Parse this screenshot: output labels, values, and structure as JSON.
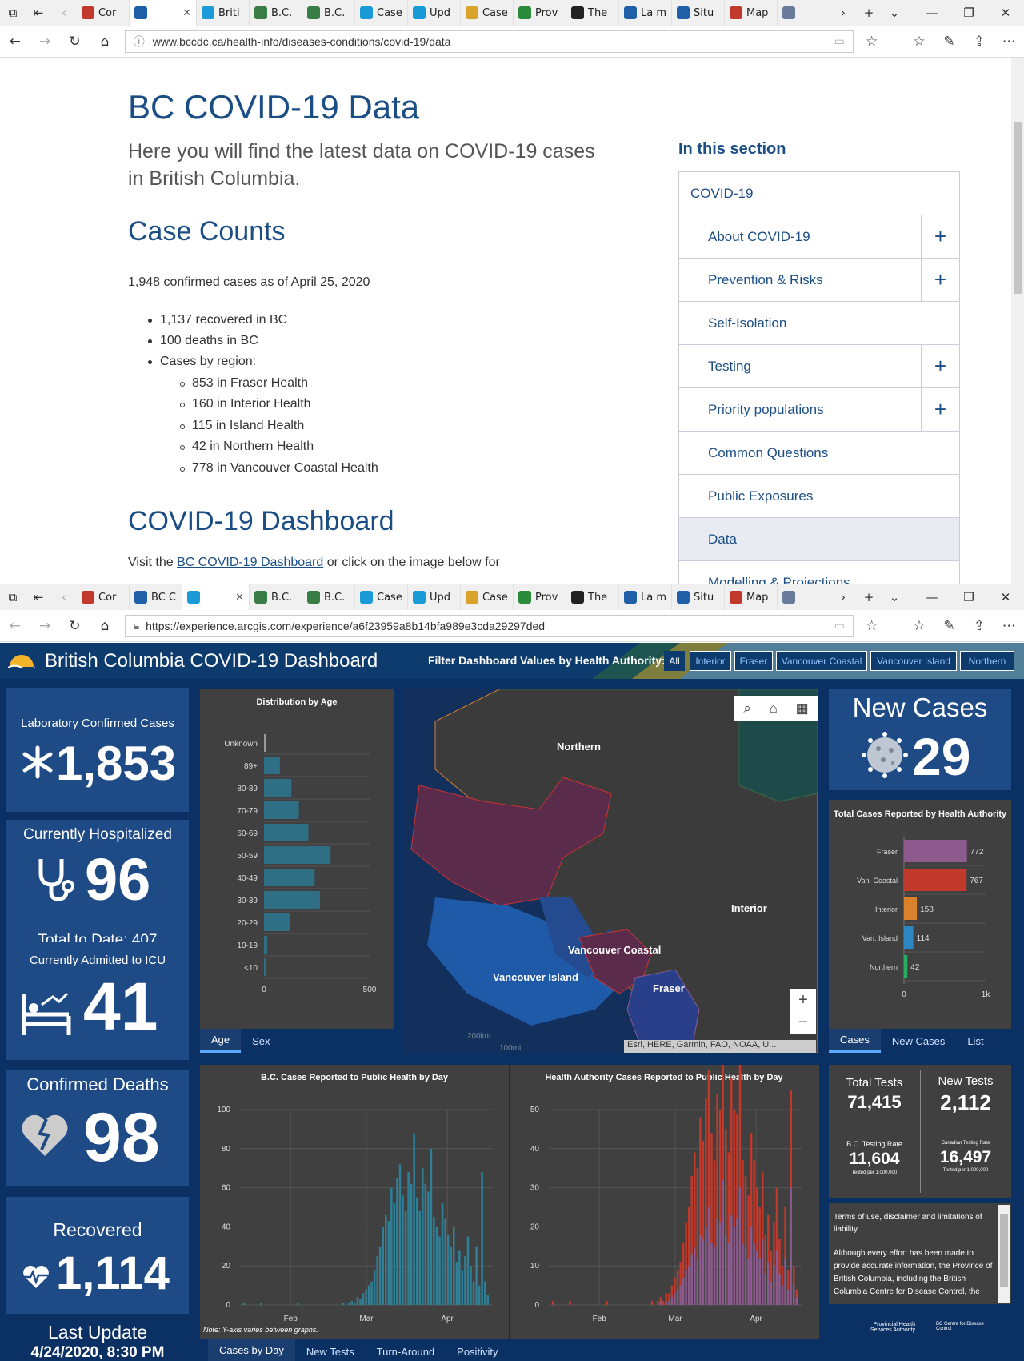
{
  "browser1": {
    "tabs": [
      "Cor",
      "",
      "Briti",
      "B.C.",
      "B.C.",
      "Case",
      "Upd",
      "Case",
      "Prov",
      "The",
      "La m",
      "Situ",
      "Map",
      ""
    ],
    "url": "www.bccdc.ca/health-info/diseases-conditions/covid-19/data"
  },
  "page1": {
    "title": "BC COVID-19 Data",
    "lead": "Here you will find the latest data on COVID-19 cases in British Columbia.",
    "case_counts_heading": "Case Counts",
    "confirmed": "1,948 confirmed cases as of April 25, 2020",
    "bullets": [
      "1,137 recovered in BC",
      "100 deaths in BC",
      "Cases by region:"
    ],
    "regions": [
      "853 in Fraser Health",
      "160 in Interior Health",
      "115 in Island Health",
      "42 in Northern Health",
      "778 in Vancouver Coastal Health"
    ],
    "dashboard_heading": "COVID-19 Dashboard",
    "visit_pre": "Visit the ",
    "visit_link": "BC COVID-19 Dashboard",
    "visit_post": " or click on the image below for",
    "section_title": "In this section",
    "nav": [
      {
        "label": "COVID-19",
        "plus": false
      },
      {
        "label": "About COVID-19",
        "plus": true
      },
      {
        "label": "Prevention & Risks",
        "plus": true
      },
      {
        "label": "Self-Isolation",
        "plus": false
      },
      {
        "label": "Testing",
        "plus": true
      },
      {
        "label": "Priority populations",
        "plus": true
      },
      {
        "label": "Common Questions",
        "plus": false
      },
      {
        "label": "Public Exposures",
        "plus": false
      },
      {
        "label": "Data",
        "plus": false
      },
      {
        "label": "Modelling & Projections",
        "plus": false
      }
    ]
  },
  "browser2": {
    "tabs": [
      "Cor",
      "BC C",
      "",
      "B.C.",
      "B.C.",
      "Case",
      "Upd",
      "Case",
      "Prov",
      "The",
      "La m",
      "Situ",
      "Map",
      ""
    ],
    "url": "https://experience.arcgis.com/experience/a6f23959a8b14bfa989e3cda29297ded"
  },
  "dashboard": {
    "title": "British Columbia COVID-19 Dashboard",
    "filter_label": "Filter Dashboard Values by Health Authority:",
    "filters": [
      "All",
      "Interior",
      "Fraser",
      "Vancouver Coastal",
      "Vancouver Island",
      "Northern"
    ],
    "lab_confirmed": {
      "label": "Laboratory Confirmed Cases",
      "value": "1,853"
    },
    "hospitalized": {
      "label": "Currently Hospitalized",
      "value": "96",
      "total": "Total to Date: 407"
    },
    "icu": {
      "label": "Currently Admitted to ICU",
      "value": "41"
    },
    "deaths": {
      "label": "Confirmed Deaths",
      "value": "98"
    },
    "recovered": {
      "label": "Recovered",
      "value": "1,114"
    },
    "last_update": {
      "label": "Last Update",
      "value": "4/24/2020, 8:30 PM"
    },
    "new_cases": {
      "label": "New Cases",
      "value": "29"
    },
    "age_tabs": [
      "Age",
      "Sex"
    ],
    "ha_tabs": [
      "Cases",
      "New Cases",
      "List"
    ],
    "bottom_tabs": [
      "Cases by Day",
      "New Tests",
      "Turn-Around",
      "Positivity"
    ],
    "map_labels": [
      "Northern",
      "Interior",
      "Vancouver Coastal",
      "Vancouver Island",
      "Fraser"
    ],
    "map_attrib": "Esri, HERE, Garmin, FAO, NOAA, U...",
    "map_scale": [
      "200km",
      "100mi"
    ],
    "tests": {
      "total_label": "Total Tests",
      "total": "71,415",
      "new_label": "New Tests",
      "new": "2,112",
      "bc_rate_label": "B.C. Testing Rate",
      "bc_rate": "11,604",
      "bc_rate_sub": "Tested per 1,000,000",
      "ca_rate_label": "Canadian Testing Rate",
      "ca_rate": "16,497",
      "ca_rate_sub": "Tested per 1,000,000"
    },
    "terms_title": "Terms of use, disclaimer and limitations of liability",
    "terms_body": "Although every effort has been made to provide accurate information, the Province of British Columbia, including the British Columbia Centre for Disease Control, the",
    "note": "Note: Y-axis varies between graphs.",
    "logo1": "Provincial Health Services Authority",
    "logo2": "BC Centre for Disease Control"
  },
  "chart_data": [
    {
      "type": "bar",
      "title": "Distribution by Age",
      "categories": [
        "Unknown",
        "89+",
        "80-89",
        "70-79",
        "60-69",
        "50-59",
        "40-49",
        "30-39",
        "20-29",
        "10-19",
        "<10"
      ],
      "values": [
        6,
        75,
        130,
        165,
        210,
        315,
        240,
        265,
        125,
        15,
        10
      ],
      "xlim": [
        0,
        500
      ],
      "xticks": [
        "0",
        "500"
      ]
    },
    {
      "type": "bar",
      "title": "Total Cases Reported by Health Authority",
      "categories": [
        "Fraser",
        "Van. Coastal",
        "Interior",
        "Van. Island",
        "Northern"
      ],
      "values": [
        772,
        767,
        158,
        114,
        42
      ],
      "colors": [
        "#8c5a8c",
        "#c0392b",
        "#d9822b",
        "#2e86c1",
        "#27ae60"
      ],
      "xlim": [
        0,
        1000
      ],
      "xticks": [
        "0",
        "1k"
      ]
    },
    {
      "type": "bar",
      "title": "B.C. Cases Reported to Public Health by Day",
      "ylim": [
        0,
        100
      ],
      "yticks": [
        0,
        20,
        40,
        60,
        80,
        100
      ],
      "xticks": [
        "Feb",
        "Mar",
        "Apr"
      ],
      "values": [
        1,
        0,
        0,
        0,
        0,
        0,
        1,
        0,
        0,
        0,
        0,
        0,
        0,
        0,
        0,
        0,
        0,
        0,
        0,
        1,
        0,
        0,
        0,
        0,
        0,
        0,
        0,
        0,
        0,
        0,
        0,
        0,
        0,
        0,
        0,
        1,
        0,
        1,
        2,
        1,
        4,
        3,
        6,
        8,
        10,
        12,
        18,
        25,
        30,
        40,
        46,
        43,
        60,
        52,
        65,
        72,
        56,
        48,
        68,
        62,
        88,
        55,
        48,
        70,
        62,
        58,
        80,
        45,
        40,
        35,
        52,
        44,
        36,
        30,
        40,
        22,
        28,
        18,
        25,
        35,
        20,
        12,
        30,
        10,
        68,
        12,
        5
      ]
    },
    {
      "type": "bar",
      "title": "Health Authority Cases Reported to Public Health by Day",
      "ylim": [
        0,
        50
      ],
      "yticks": [
        0,
        10,
        20,
        30,
        40,
        50
      ],
      "xticks": [
        "Feb",
        "Mar",
        "Apr"
      ],
      "series": [
        {
          "name": "Fraser",
          "color": "#8c5a8c",
          "values": [
            0,
            0,
            0,
            0,
            0,
            0,
            0,
            0,
            0,
            0,
            0,
            0,
            0,
            0,
            0,
            0,
            0,
            0,
            0,
            0,
            0,
            0,
            0,
            0,
            0,
            0,
            0,
            0,
            0,
            0,
            0,
            0,
            0,
            0,
            0,
            0,
            0,
            0,
            1,
            0,
            1,
            1,
            2,
            3,
            4,
            5,
            7,
            9,
            10,
            13,
            15,
            12,
            18,
            17,
            20,
            25,
            16,
            15,
            22,
            21,
            32,
            18,
            16,
            23,
            20,
            22,
            30,
            16,
            15,
            12,
            20,
            16,
            14,
            12,
            17,
            8,
            11,
            6,
            10,
            14,
            8,
            5,
            12,
            4,
            30,
            5,
            2
          ]
        },
        {
          "name": "Van. Coastal",
          "color": "#c0392b",
          "values": [
            1,
            0,
            0,
            0,
            0,
            0,
            1,
            0,
            0,
            0,
            0,
            0,
            0,
            0,
            0,
            0,
            0,
            0,
            0,
            1,
            0,
            0,
            0,
            0,
            0,
            0,
            0,
            0,
            0,
            0,
            0,
            0,
            0,
            0,
            0,
            1,
            0,
            1,
            1,
            1,
            2,
            2,
            3,
            4,
            5,
            6,
            9,
            12,
            15,
            20,
            24,
            23,
            30,
            25,
            33,
            35,
            28,
            22,
            32,
            29,
            43,
            27,
            23,
            35,
            30,
            27,
            38,
            21,
            18,
            16,
            24,
            21,
            16,
            13,
            17,
            10,
            12,
            8,
            11,
            16,
            9,
            5,
            13,
            5,
            25,
            5,
            2
          ]
        }
      ]
    }
  ]
}
